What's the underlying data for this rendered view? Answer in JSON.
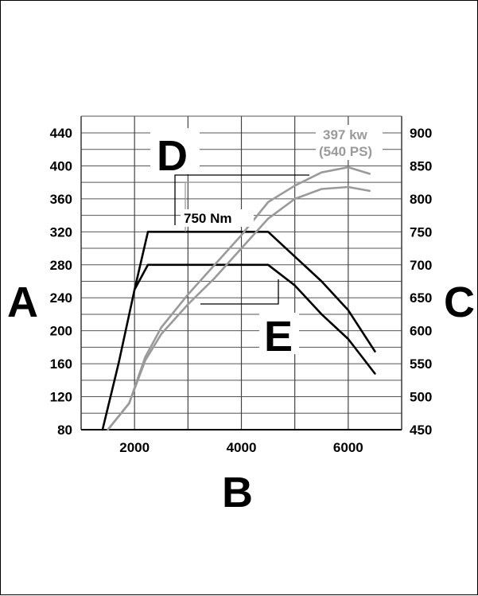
{
  "chart_data": {
    "type": "line",
    "x_ticks": [
      "2000",
      "4000",
      "6000"
    ],
    "xlim": [
      1000,
      7000
    ],
    "left_axis_ticks": [
      "80",
      "120",
      "160",
      "200",
      "240",
      "280",
      "320",
      "360",
      "400",
      "440"
    ],
    "left_ylim": [
      80,
      440
    ],
    "right_axis_ticks": [
      "450",
      "500",
      "550",
      "600",
      "650",
      "700",
      "750",
      "800",
      "850",
      "900"
    ],
    "right_ylim": [
      450,
      900
    ],
    "grid": true,
    "letters": {
      "A": "A",
      "B": "B",
      "C": "C",
      "D": "D",
      "E": "E"
    },
    "annotations": {
      "torque_peak": "750 Nm",
      "power_peak_line1": "397 kw",
      "power_peak_line2": "(540 PS)"
    },
    "series": [
      {
        "color": "#000000",
        "axis": "left",
        "points": [
          [
            1400,
            80
          ],
          [
            1700,
            160
          ],
          [
            2000,
            250
          ],
          [
            2250,
            320
          ],
          [
            4500,
            320
          ],
          [
            5000,
            290
          ],
          [
            5500,
            260
          ],
          [
            6000,
            225
          ],
          [
            6500,
            175
          ]
        ]
      },
      {
        "color": "#000000",
        "axis": "left",
        "points": [
          [
            2000,
            250
          ],
          [
            2250,
            280
          ],
          [
            4500,
            280
          ],
          [
            5000,
            255
          ],
          [
            5500,
            220
          ],
          [
            6000,
            190
          ],
          [
            6500,
            148
          ]
        ]
      },
      {
        "color": "#9a9a9a",
        "axis": "right",
        "points": [
          [
            1500,
            450
          ],
          [
            1900,
            490
          ],
          [
            2200,
            555
          ],
          [
            2500,
            595
          ],
          [
            3000,
            640
          ],
          [
            3500,
            680
          ],
          [
            4000,
            725
          ],
          [
            4500,
            770
          ],
          [
            5000,
            800
          ],
          [
            5500,
            815
          ],
          [
            6000,
            818
          ],
          [
            6400,
            812
          ]
        ]
      },
      {
        "color": "#9a9a9a",
        "axis": "right",
        "points": [
          [
            1500,
            450
          ],
          [
            1900,
            490
          ],
          [
            2200,
            560
          ],
          [
            2500,
            605
          ],
          [
            3000,
            655
          ],
          [
            3500,
            700
          ],
          [
            4000,
            745
          ],
          [
            4500,
            795
          ],
          [
            5000,
            820
          ],
          [
            5500,
            840
          ],
          [
            6000,
            848
          ],
          [
            6400,
            838
          ]
        ]
      }
    ]
  }
}
